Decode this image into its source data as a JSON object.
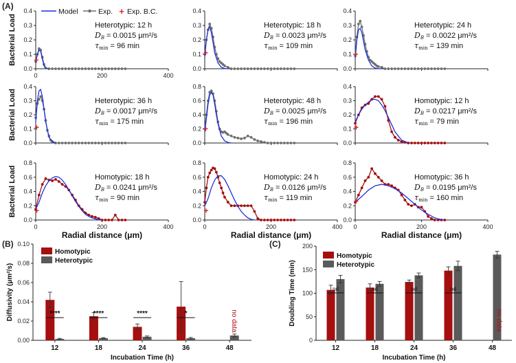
{
  "figure": {
    "panel_labels": [
      "(A)",
      "(B)",
      "(C)"
    ],
    "colors": {
      "model": "#1f2fdc",
      "experiment": "#6e6e6e",
      "homotypic": "#a50f0f",
      "heterotypic": "#5a5a5a",
      "bc": "#e82020",
      "axis": "#222222",
      "nodata": "#b01010"
    },
    "panel_a_common": {
      "ylabel": "Bacterial Load",
      "xlabel": "Radial distance (μm)",
      "legend": {
        "model": "Model",
        "exp": "Exp.",
        "bc": "Exp. B.C."
      }
    }
  },
  "chart_data": [
    {
      "type": "line",
      "id": "A1",
      "group": "Heterotypic",
      "title": "Heterotypic: 12 h",
      "db": "D_B = 0.0015 μm²/s",
      "tau": "τ_min = 96 min",
      "db_value": "= 0.0015 μm²/s",
      "tau_value": "= 96 min",
      "xlim": [
        0,
        400
      ],
      "ylim": [
        0,
        0.4
      ],
      "xticks": [
        "0",
        "200",
        "400"
      ],
      "yticks": [
        "0.0",
        "0.1",
        "0.2",
        "0.3",
        "0.4"
      ],
      "exp_x": [
        0,
        5,
        10,
        15,
        20,
        25,
        30,
        40,
        50,
        60,
        70,
        80,
        90,
        100,
        110,
        120,
        130,
        140,
        150,
        160,
        170,
        180,
        190,
        200,
        210,
        220,
        230,
        240,
        250,
        260,
        270
      ],
      "exp_y": [
        0.05,
        0.1,
        0.14,
        0.13,
        0.08,
        0.03,
        0.005,
        0,
        0,
        0,
        0,
        0,
        0,
        0,
        0,
        0,
        0,
        0,
        0,
        0,
        0,
        0,
        0,
        0,
        0,
        0,
        0,
        0,
        0,
        0,
        0
      ],
      "model_x": [
        0,
        5,
        10,
        15,
        20,
        25,
        30,
        40
      ],
      "model_y": [
        0.04,
        0.1,
        0.13,
        0.12,
        0.07,
        0.02,
        0.004,
        0
      ],
      "bc": [
        2,
        0.06
      ]
    },
    {
      "type": "line",
      "id": "A2",
      "group": "Heterotypic",
      "title": "Heterotypic: 18 h",
      "db": "D_B = 0.0023 μm²/s",
      "tau": "τ_min = 109 min",
      "db_value": "= 0.0023 μm²/s",
      "tau_value": "= 109 min",
      "xlim": [
        0,
        400
      ],
      "ylim": [
        0,
        0.4
      ],
      "xticks": [],
      "yticks": [
        "0.0",
        "0.1",
        "0.2",
        "0.3",
        "0.4"
      ],
      "exp_x": [
        0,
        5,
        10,
        15,
        20,
        25,
        30,
        35,
        40,
        45,
        50,
        55,
        60,
        70,
        80,
        90,
        100,
        110,
        120,
        130,
        140,
        150,
        160,
        170,
        180,
        190,
        200,
        210,
        220,
        230,
        240,
        250,
        260,
        270
      ],
      "exp_y": [
        0.1,
        0.2,
        0.27,
        0.31,
        0.28,
        0.22,
        0.15,
        0.1,
        0.07,
        0.05,
        0.04,
        0.03,
        0.02,
        0.01,
        0,
        0,
        0,
        0,
        0,
        0,
        0,
        0,
        0,
        0,
        0,
        0,
        0,
        0,
        0,
        0,
        0,
        0,
        0,
        0
      ],
      "model_x": [
        0,
        5,
        10,
        15,
        20,
        25,
        30,
        40,
        50,
        60,
        70
      ],
      "model_y": [
        0.08,
        0.2,
        0.27,
        0.29,
        0.25,
        0.18,
        0.11,
        0.04,
        0.01,
        0.002,
        0
      ],
      "bc": [
        3,
        0.11
      ]
    },
    {
      "type": "line",
      "id": "A3",
      "group": "Heterotypic",
      "title": "Heterotypic: 24 h",
      "db": "D_B = 0.0022 μm²/s",
      "tau": "τ_min = 139 min",
      "db_value": "= 0.0022 μm²/s",
      "tau_value": "= 139 min",
      "xlim": [
        0,
        400
      ],
      "ylim": [
        0,
        0.4
      ],
      "xticks": [],
      "yticks": [
        "0.0",
        "0.1",
        "0.2",
        "0.3",
        "0.4"
      ],
      "exp_x": [
        0,
        5,
        10,
        15,
        20,
        25,
        30,
        35,
        40,
        45,
        50,
        55,
        60,
        65,
        70,
        80,
        90,
        100,
        110,
        120,
        130,
        140,
        150,
        160,
        170,
        180,
        190,
        200,
        210,
        220,
        230,
        240,
        250,
        260,
        270
      ],
      "exp_y": [
        0.09,
        0.22,
        0.31,
        0.33,
        0.29,
        0.23,
        0.17,
        0.12,
        0.08,
        0.06,
        0.05,
        0.04,
        0.03,
        0.02,
        0.015,
        0.01,
        0,
        0,
        0,
        0,
        0,
        0,
        0,
        0,
        0,
        0,
        0,
        0,
        0,
        0,
        0,
        0,
        0,
        0,
        0
      ],
      "model_x": [
        0,
        5,
        10,
        15,
        20,
        25,
        30,
        40,
        50,
        60,
        70,
        80
      ],
      "model_y": [
        0.07,
        0.2,
        0.27,
        0.28,
        0.25,
        0.19,
        0.13,
        0.06,
        0.02,
        0.005,
        0.001,
        0
      ],
      "bc": [
        2,
        0.1
      ]
    },
    {
      "type": "line",
      "id": "A4",
      "group": "Heterotypic",
      "title": "Heterotypic: 36 h",
      "db": "D_B = 0.0017 μm²/s",
      "tau": "τ_min = 175 min",
      "db_value": "= 0.0017 μm²/s",
      "tau_value": "= 175 min",
      "xlim": [
        0,
        400
      ],
      "ylim": [
        0,
        0.4
      ],
      "xticks": [],
      "yticks": [
        "0.0",
        "0.1",
        "0.2",
        "0.3",
        "0.4"
      ],
      "exp_x": [
        0,
        5,
        10,
        15,
        20,
        25,
        30,
        35,
        40,
        45,
        50,
        60,
        70,
        80,
        90,
        100,
        110,
        120,
        130,
        140,
        150,
        160,
        170,
        180,
        190,
        200,
        210,
        220,
        230,
        240,
        250,
        260,
        270
      ],
      "exp_y": [
        0.18,
        0.28,
        0.31,
        0.33,
        0.3,
        0.24,
        0.16,
        0.09,
        0.05,
        0.02,
        0.01,
        0,
        0,
        0,
        0,
        0,
        0,
        0,
        0,
        0,
        0,
        0,
        0,
        0,
        0,
        0,
        0,
        0,
        0,
        0,
        0,
        0,
        0
      ],
      "model_x": [
        0,
        5,
        10,
        15,
        20,
        25,
        30,
        40,
        50,
        60
      ],
      "model_y": [
        0.15,
        0.3,
        0.37,
        0.38,
        0.33,
        0.24,
        0.15,
        0.04,
        0.01,
        0
      ],
      "bc": [
        3,
        0.11
      ]
    },
    {
      "type": "line",
      "id": "A5",
      "group": "Heterotypic",
      "title": "Heterotypic: 48 h",
      "db": "D_B = 0.0025 μm²/s",
      "tau": "τ_min = 196 min",
      "db_value": "= 0.0025 μm²/s",
      "tau_value": "= 196 min",
      "xlim": [
        0,
        400
      ],
      "ylim": [
        0,
        0.8
      ],
      "xticks": [],
      "yticks": [
        "0.0",
        "0.2",
        "0.4",
        "0.6",
        "0.8"
      ],
      "exp_x": [
        0,
        5,
        10,
        15,
        20,
        25,
        30,
        35,
        40,
        45,
        50,
        55,
        60,
        65,
        70,
        80,
        90,
        100,
        110,
        120,
        130,
        140,
        150,
        160,
        170,
        180,
        190,
        200,
        210,
        220,
        230,
        240,
        250,
        260,
        270
      ],
      "exp_y": [
        0.2,
        0.4,
        0.6,
        0.72,
        0.74,
        0.7,
        0.6,
        0.45,
        0.3,
        0.2,
        0.16,
        0.15,
        0.16,
        0.14,
        0.12,
        0.1,
        0.08,
        0.07,
        0.06,
        0.07,
        0.1,
        0.08,
        0.05,
        0.03,
        0.02,
        0.01,
        0,
        0,
        0,
        0,
        0,
        0,
        0,
        0,
        0
      ],
      "model_x": [
        0,
        5,
        10,
        15,
        20,
        25,
        30,
        35,
        40,
        50,
        60,
        70,
        80
      ],
      "model_y": [
        0.15,
        0.35,
        0.55,
        0.68,
        0.72,
        0.68,
        0.55,
        0.4,
        0.27,
        0.1,
        0.03,
        0.008,
        0
      ],
      "bc": [
        3,
        0.2
      ]
    },
    {
      "type": "line",
      "id": "A6",
      "group": "Homotypic",
      "title": "Homotypic: 12 h",
      "db": "D_B = 0.0217 μm²/s",
      "tau": "τ_min = 79 min",
      "db_value": "= 0.0217 μm²/s",
      "tau_value": "= 79 min",
      "xlim": [
        0,
        400
      ],
      "ylim": [
        0,
        0.4
      ],
      "xticks": [],
      "yticks": [
        "0.0",
        "0.1",
        "0.2",
        "0.3",
        "0.4"
      ],
      "exp_x": [
        0,
        10,
        20,
        30,
        40,
        50,
        60,
        70,
        80,
        90,
        100,
        110,
        120,
        130,
        140,
        150,
        160,
        170,
        180,
        190,
        200,
        210,
        220,
        230,
        240,
        250,
        260,
        270
      ],
      "exp_y": [
        0.14,
        0.2,
        0.25,
        0.27,
        0.28,
        0.31,
        0.33,
        0.33,
        0.31,
        0.26,
        0.16,
        0.08,
        0.04,
        0.02,
        0.01,
        0.005,
        0,
        0,
        0,
        0,
        0,
        0,
        0,
        0,
        0,
        0,
        0,
        0
      ],
      "model_x": [
        0,
        10,
        20,
        30,
        40,
        50,
        60,
        70,
        80,
        90,
        100,
        110,
        120,
        130,
        140,
        150,
        160
      ],
      "model_y": [
        0.15,
        0.2,
        0.24,
        0.27,
        0.29,
        0.31,
        0.31,
        0.3,
        0.27,
        0.23,
        0.18,
        0.13,
        0.08,
        0.05,
        0.02,
        0.01,
        0
      ],
      "bc": [
        3,
        0.11
      ]
    },
    {
      "type": "line",
      "id": "A7",
      "group": "Homotypic",
      "title": "Homotypic: 18 h",
      "db": "D_B = 0.0241 μm²/s",
      "tau": "τ_min = 90 min",
      "db_value": "= 0.0241 μm²/s",
      "tau_value": "= 90 min",
      "xlim": [
        0,
        400
      ],
      "ylim": [
        0,
        0.8
      ],
      "xticks": [
        "0",
        "200",
        "400"
      ],
      "yticks": [
        "0.0",
        "0.2",
        "0.4",
        "0.6",
        "0.8"
      ],
      "exp_x": [
        0,
        10,
        20,
        30,
        40,
        50,
        60,
        70,
        80,
        90,
        100,
        110,
        120,
        130,
        140,
        150,
        160,
        170,
        180,
        190,
        200,
        210,
        220,
        230,
        240,
        250,
        260,
        270
      ],
      "exp_y": [
        0.15,
        0.35,
        0.5,
        0.58,
        0.56,
        0.55,
        0.57,
        0.54,
        0.5,
        0.47,
        0.42,
        0.35,
        0.28,
        0.2,
        0.15,
        0.1,
        0.07,
        0.05,
        0.04,
        0.02,
        0,
        0,
        0,
        0,
        0.07,
        0,
        0,
        0
      ],
      "model_x": [
        0,
        10,
        20,
        30,
        40,
        50,
        60,
        70,
        80,
        90,
        100,
        110,
        120,
        130,
        140,
        150,
        160,
        170,
        180,
        190,
        200
      ],
      "model_y": [
        0.15,
        0.25,
        0.38,
        0.48,
        0.55,
        0.59,
        0.61,
        0.6,
        0.56,
        0.5,
        0.42,
        0.34,
        0.26,
        0.19,
        0.13,
        0.08,
        0.05,
        0.03,
        0.015,
        0.005,
        0
      ],
      "bc": [
        3,
        0.13
      ]
    },
    {
      "type": "line",
      "id": "A8",
      "group": "Homotypic",
      "title": "Homotypic: 24 h",
      "db": "D_B = 0.0126 μm²/s",
      "tau": "τ_min = 119 min",
      "db_value": "= 0.0126 μm²/s",
      "tau_value": "= 119 min",
      "xlim": [
        0,
        400
      ],
      "ylim": [
        0,
        0.8
      ],
      "xticks": [
        "0",
        "200",
        "400"
      ],
      "yticks": [
        "0.0",
        "0.2",
        "0.4",
        "0.6",
        "0.8"
      ],
      "exp_x": [
        0,
        5,
        10,
        15,
        20,
        25,
        30,
        35,
        40,
        45,
        50,
        55,
        60,
        70,
        80,
        90,
        100,
        110,
        120,
        130,
        140,
        150,
        160,
        170,
        180,
        190,
        200,
        210,
        220,
        230,
        240,
        250,
        260,
        270
      ],
      "exp_y": [
        0.25,
        0.45,
        0.6,
        0.66,
        0.7,
        0.73,
        0.72,
        0.67,
        0.6,
        0.52,
        0.45,
        0.38,
        0.32,
        0.25,
        0.2,
        0.2,
        0.2,
        0.2,
        0.2,
        0.2,
        0.2,
        0.12,
        0.02,
        0,
        0,
        0,
        0,
        0,
        0,
        0,
        0,
        0,
        0,
        0
      ],
      "model_x": [
        0,
        10,
        20,
        30,
        40,
        50,
        60,
        70,
        80,
        90,
        100,
        110,
        120,
        130,
        140,
        150
      ],
      "model_y": [
        0.2,
        0.3,
        0.45,
        0.56,
        0.62,
        0.62,
        0.57,
        0.48,
        0.38,
        0.28,
        0.19,
        0.12,
        0.07,
        0.03,
        0.01,
        0
      ],
      "bc": [
        4,
        0.13
      ]
    },
    {
      "type": "line",
      "id": "A9",
      "group": "Homotypic",
      "title": "Homotypic: 36 h",
      "db": "D_B = 0.0195 μm²/s",
      "tau": "τ_min = 160 min",
      "db_value": "= 0.0195 μm²/s",
      "tau_value": "= 160 min",
      "xlim": [
        0,
        400
      ],
      "ylim": [
        0,
        0.8
      ],
      "xticks": [
        "0",
        "200",
        "400"
      ],
      "yticks": [
        "0.0",
        "0.2",
        "0.4",
        "0.6",
        "0.8"
      ],
      "exp_x": [
        0,
        10,
        20,
        30,
        40,
        50,
        60,
        70,
        80,
        90,
        100,
        110,
        120,
        130,
        140,
        150,
        160,
        170,
        180,
        190,
        200,
        210,
        220,
        230,
        240,
        250,
        260,
        270
      ],
      "exp_y": [
        0.25,
        0.35,
        0.45,
        0.55,
        0.6,
        0.72,
        0.65,
        0.6,
        0.55,
        0.5,
        0.5,
        0.48,
        0.45,
        0.42,
        0.35,
        0.28,
        0.22,
        0.2,
        0.22,
        0.18,
        0.18,
        0.12,
        0.05,
        0.02,
        0,
        0,
        0,
        0
      ],
      "model_x": [
        0,
        20,
        40,
        60,
        80,
        100,
        120,
        140,
        160,
        180,
        200,
        220,
        240,
        260,
        270
      ],
      "model_y": [
        0.25,
        0.33,
        0.42,
        0.48,
        0.5,
        0.48,
        0.44,
        0.38,
        0.3,
        0.22,
        0.14,
        0.08,
        0.03,
        0.005,
        0
      ],
      "bc": [
        3,
        0.26
      ]
    },
    {
      "type": "bar",
      "id": "B",
      "categories": [
        "12",
        "18",
        "24",
        "36",
        "48"
      ],
      "xlabel": "Incubation Time (h)",
      "ylabel": "Diffusivity (μm²/s)",
      "ylim": [
        0,
        0.1
      ],
      "yticks": [
        "0.00",
        "0.02",
        "0.04",
        "0.06",
        "0.08",
        "0.10"
      ],
      "series": [
        {
          "name": "Homotypic",
          "values": [
            0.042,
            0.025,
            0.014,
            0.035,
            null
          ],
          "errors": [
            0.008,
            0.004,
            0.003,
            0.026,
            null
          ]
        },
        {
          "name": "Heterotypic",
          "values": [
            0.0015,
            0.0023,
            0.0037,
            0.0022,
            0.005
          ],
          "errors": [
            0.0005,
            0.0005,
            0.0008,
            0.0008,
            0.0015
          ]
        }
      ],
      "significance": [
        "****",
        "****",
        "****",
        "*"
      ],
      "no_data_label": "no data",
      "no_data_category": "48"
    },
    {
      "type": "bar",
      "id": "C",
      "categories": [
        "12",
        "18",
        "24",
        "36",
        "48"
      ],
      "xlabel": "Incubation Time (h)",
      "ylabel": "Doubling Time (min)",
      "ylim": [
        0,
        200
      ],
      "yticks": [
        "0",
        "50",
        "100",
        "150",
        "200"
      ],
      "series": [
        {
          "name": "Homotypic",
          "values": [
            107,
            112,
            124,
            148,
            null
          ],
          "errors": [
            10,
            8,
            4,
            8,
            null
          ]
        },
        {
          "name": "Heterotypic",
          "values": [
            130,
            120,
            138,
            158,
            182
          ],
          "errors": [
            8,
            5,
            5,
            10,
            7
          ]
        }
      ],
      "significance": [
        "nd",
        "nd",
        "nd",
        "nd"
      ],
      "no_data_label": "no data",
      "no_data_category": "48"
    }
  ]
}
